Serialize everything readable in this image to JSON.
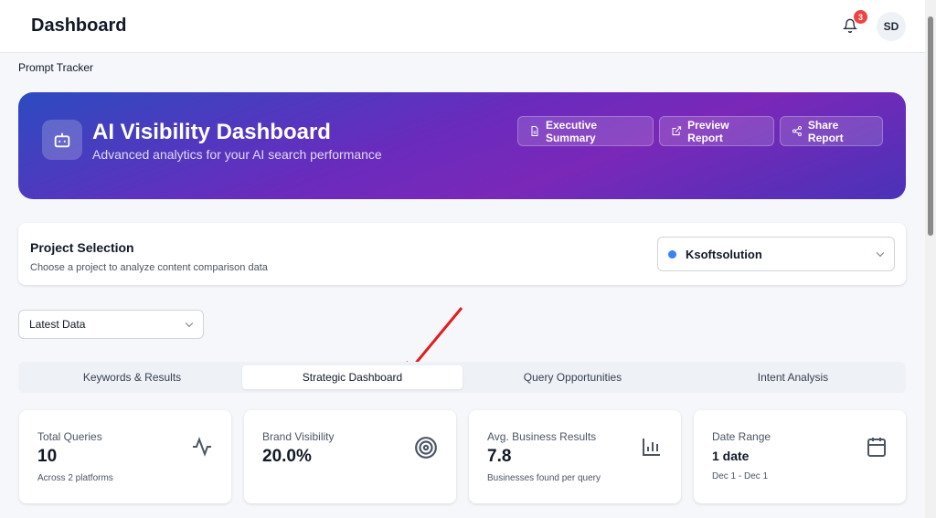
{
  "header": {
    "title": "Dashboard",
    "notifications": "3",
    "avatar_initials": "SD"
  },
  "breadcrumb": "Prompt Tracker",
  "hero": {
    "title": "AI Visibility Dashboard",
    "subtitle": "Advanced analytics for your AI search performance",
    "buttons": [
      {
        "label": "Executive Summary",
        "icon": "document-icon"
      },
      {
        "label": "Preview Report",
        "icon": "external-link-icon"
      },
      {
        "label": "Share Report",
        "icon": "share-icon"
      }
    ]
  },
  "project": {
    "title": "Project Selection",
    "description": "Choose a project to analyze content comparison data",
    "selected": "Ksoftsolution",
    "dot_color": "#3b82f6"
  },
  "data_filter": {
    "selected": "Latest Data"
  },
  "tabs": [
    {
      "label": "Keywords & Results"
    },
    {
      "label": "Strategic Dashboard",
      "active": true
    },
    {
      "label": "Query Opportunities"
    },
    {
      "label": "Intent Analysis"
    }
  ],
  "stats": [
    {
      "label": "Total Queries",
      "value": "10",
      "sub": "Across 2 platforms",
      "icon": "activity-icon"
    },
    {
      "label": "Brand Visibility",
      "value": "20.0%",
      "sub": "",
      "icon": "target-icon"
    },
    {
      "label": "Avg. Business Results",
      "value": "7.8",
      "sub": "Businesses found per query",
      "icon": "bar-chart-icon"
    },
    {
      "label": "Date Range",
      "value": "1 date",
      "sub": "Dec 1 - Dec 1",
      "icon": "calendar-icon"
    }
  ]
}
